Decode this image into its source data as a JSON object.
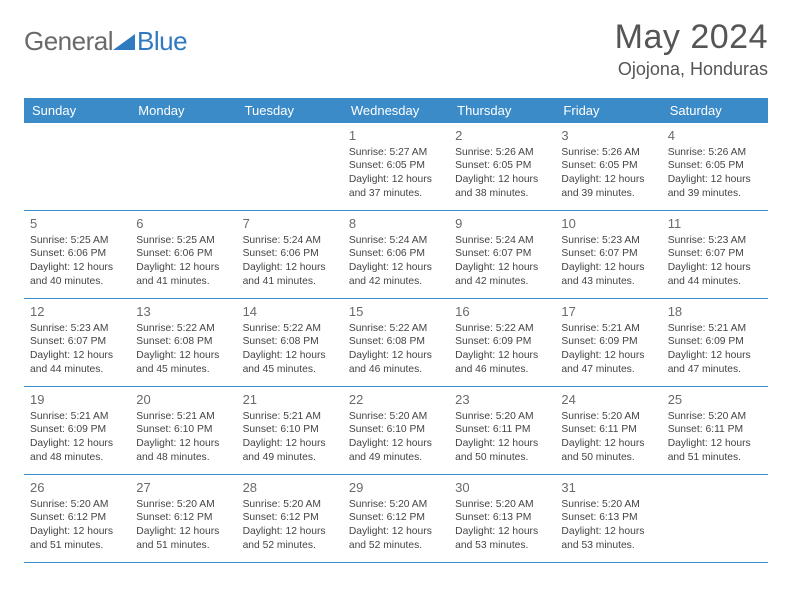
{
  "logo": {
    "text1": "General",
    "text2": "Blue",
    "text1_color": "#6a6a6a",
    "text2_color": "#2f7ac0"
  },
  "title": "May 2024",
  "location": "Ojojona, Honduras",
  "colors": {
    "header_bg": "#3b8bc9",
    "header_text": "#ffffff",
    "border": "#3b8bc9",
    "daynum": "#6a6a6a",
    "detail": "#444444",
    "background": "#ffffff"
  },
  "layout": {
    "columns": 7,
    "rows": 5
  },
  "weekdays": [
    "Sunday",
    "Monday",
    "Tuesday",
    "Wednesday",
    "Thursday",
    "Friday",
    "Saturday"
  ],
  "weeks": [
    [
      null,
      null,
      null,
      {
        "n": "1",
        "sr": "5:27 AM",
        "ss": "6:05 PM",
        "dl": "12 hours and 37 minutes."
      },
      {
        "n": "2",
        "sr": "5:26 AM",
        "ss": "6:05 PM",
        "dl": "12 hours and 38 minutes."
      },
      {
        "n": "3",
        "sr": "5:26 AM",
        "ss": "6:05 PM",
        "dl": "12 hours and 39 minutes."
      },
      {
        "n": "4",
        "sr": "5:26 AM",
        "ss": "6:05 PM",
        "dl": "12 hours and 39 minutes."
      }
    ],
    [
      {
        "n": "5",
        "sr": "5:25 AM",
        "ss": "6:06 PM",
        "dl": "12 hours and 40 minutes."
      },
      {
        "n": "6",
        "sr": "5:25 AM",
        "ss": "6:06 PM",
        "dl": "12 hours and 41 minutes."
      },
      {
        "n": "7",
        "sr": "5:24 AM",
        "ss": "6:06 PM",
        "dl": "12 hours and 41 minutes."
      },
      {
        "n": "8",
        "sr": "5:24 AM",
        "ss": "6:06 PM",
        "dl": "12 hours and 42 minutes."
      },
      {
        "n": "9",
        "sr": "5:24 AM",
        "ss": "6:07 PM",
        "dl": "12 hours and 42 minutes."
      },
      {
        "n": "10",
        "sr": "5:23 AM",
        "ss": "6:07 PM",
        "dl": "12 hours and 43 minutes."
      },
      {
        "n": "11",
        "sr": "5:23 AM",
        "ss": "6:07 PM",
        "dl": "12 hours and 44 minutes."
      }
    ],
    [
      {
        "n": "12",
        "sr": "5:23 AM",
        "ss": "6:07 PM",
        "dl": "12 hours and 44 minutes."
      },
      {
        "n": "13",
        "sr": "5:22 AM",
        "ss": "6:08 PM",
        "dl": "12 hours and 45 minutes."
      },
      {
        "n": "14",
        "sr": "5:22 AM",
        "ss": "6:08 PM",
        "dl": "12 hours and 45 minutes."
      },
      {
        "n": "15",
        "sr": "5:22 AM",
        "ss": "6:08 PM",
        "dl": "12 hours and 46 minutes."
      },
      {
        "n": "16",
        "sr": "5:22 AM",
        "ss": "6:09 PM",
        "dl": "12 hours and 46 minutes."
      },
      {
        "n": "17",
        "sr": "5:21 AM",
        "ss": "6:09 PM",
        "dl": "12 hours and 47 minutes."
      },
      {
        "n": "18",
        "sr": "5:21 AM",
        "ss": "6:09 PM",
        "dl": "12 hours and 47 minutes."
      }
    ],
    [
      {
        "n": "19",
        "sr": "5:21 AM",
        "ss": "6:09 PM",
        "dl": "12 hours and 48 minutes."
      },
      {
        "n": "20",
        "sr": "5:21 AM",
        "ss": "6:10 PM",
        "dl": "12 hours and 48 minutes."
      },
      {
        "n": "21",
        "sr": "5:21 AM",
        "ss": "6:10 PM",
        "dl": "12 hours and 49 minutes."
      },
      {
        "n": "22",
        "sr": "5:20 AM",
        "ss": "6:10 PM",
        "dl": "12 hours and 49 minutes."
      },
      {
        "n": "23",
        "sr": "5:20 AM",
        "ss": "6:11 PM",
        "dl": "12 hours and 50 minutes."
      },
      {
        "n": "24",
        "sr": "5:20 AM",
        "ss": "6:11 PM",
        "dl": "12 hours and 50 minutes."
      },
      {
        "n": "25",
        "sr": "5:20 AM",
        "ss": "6:11 PM",
        "dl": "12 hours and 51 minutes."
      }
    ],
    [
      {
        "n": "26",
        "sr": "5:20 AM",
        "ss": "6:12 PM",
        "dl": "12 hours and 51 minutes."
      },
      {
        "n": "27",
        "sr": "5:20 AM",
        "ss": "6:12 PM",
        "dl": "12 hours and 51 minutes."
      },
      {
        "n": "28",
        "sr": "5:20 AM",
        "ss": "6:12 PM",
        "dl": "12 hours and 52 minutes."
      },
      {
        "n": "29",
        "sr": "5:20 AM",
        "ss": "6:12 PM",
        "dl": "12 hours and 52 minutes."
      },
      {
        "n": "30",
        "sr": "5:20 AM",
        "ss": "6:13 PM",
        "dl": "12 hours and 53 minutes."
      },
      {
        "n": "31",
        "sr": "5:20 AM",
        "ss": "6:13 PM",
        "dl": "12 hours and 53 minutes."
      },
      null
    ]
  ],
  "labels": {
    "sunrise": "Sunrise:",
    "sunset": "Sunset:",
    "daylight": "Daylight:"
  }
}
